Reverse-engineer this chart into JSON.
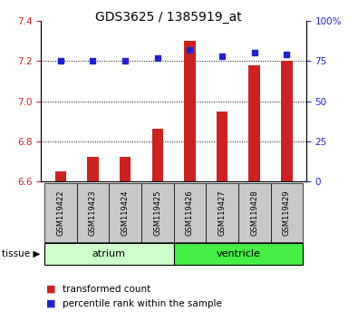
{
  "title": "GDS3625 / 1385919_at",
  "samples": [
    "GSM119422",
    "GSM119423",
    "GSM119424",
    "GSM119425",
    "GSM119426",
    "GSM119427",
    "GSM119428",
    "GSM119429"
  ],
  "red_values": [
    6.65,
    6.72,
    6.72,
    6.86,
    7.3,
    6.95,
    7.18,
    7.2
  ],
  "blue_values": [
    75,
    75,
    75,
    77,
    82,
    78,
    80,
    79
  ],
  "ylim_left": [
    6.6,
    7.4
  ],
  "ylim_right": [
    0,
    100
  ],
  "yticks_left": [
    6.6,
    6.8,
    7.0,
    7.2,
    7.4
  ],
  "yticks_right": [
    0,
    25,
    50,
    75,
    100
  ],
  "ytick_labels_right": [
    "0",
    "25",
    "50",
    "75",
    "100%"
  ],
  "group_labels": [
    "atrium",
    "ventricle"
  ],
  "group_starts": [
    0,
    4
  ],
  "group_ends": [
    3,
    7
  ],
  "group_colors": [
    "#ccffcc",
    "#44ee44"
  ],
  "bar_color": "#cc2222",
  "dot_color": "#2222cc",
  "bar_bottom": 6.6,
  "label_bg_color": "#c8c8c8",
  "legend_red": "transformed count",
  "legend_blue": "percentile rank within the sample"
}
